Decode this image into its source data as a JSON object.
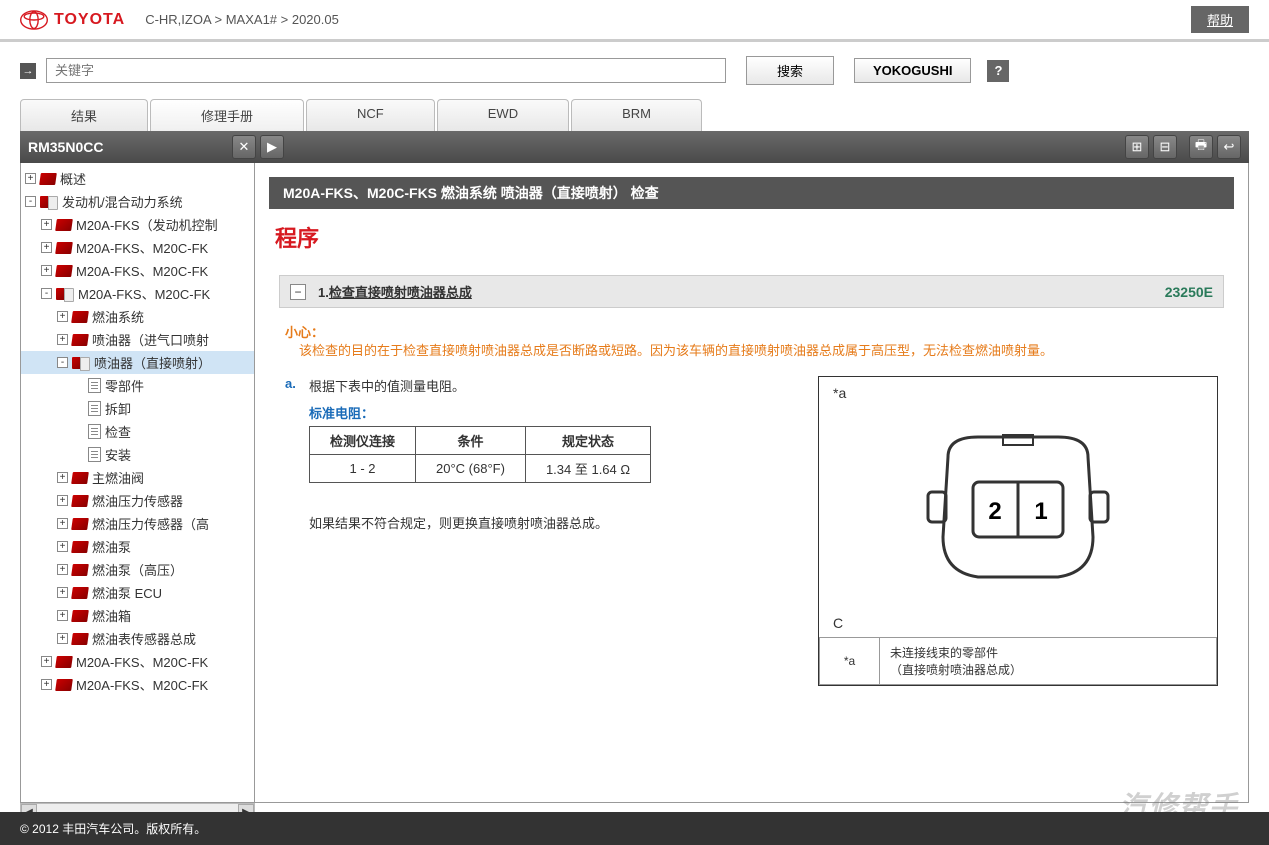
{
  "header": {
    "logo": "TOYOTA",
    "breadcrumb": "C-HR,IZOA > MAXA1# > 2020.05",
    "help": "帮助"
  },
  "search": {
    "placeholder": "关键字",
    "searchBtn": "搜索",
    "yoko": "YOKOGUSHI"
  },
  "tabs": [
    "结果",
    "修理手册",
    "NCF",
    "EWD",
    "BRM"
  ],
  "docId": "RM35N0CC",
  "tree": [
    {
      "d": 0,
      "exp": "+",
      "icon": "red",
      "label": "概述"
    },
    {
      "d": 0,
      "exp": "-",
      "icon": "open",
      "label": "发动机/混合动力系统"
    },
    {
      "d": 1,
      "exp": "+",
      "icon": "red",
      "label": "M20A-FKS（发动机控制"
    },
    {
      "d": 1,
      "exp": "+",
      "icon": "red",
      "label": "M20A-FKS、M20C-FK"
    },
    {
      "d": 1,
      "exp": "+",
      "icon": "red",
      "label": "M20A-FKS、M20C-FK"
    },
    {
      "d": 1,
      "exp": "-",
      "icon": "open",
      "label": "M20A-FKS、M20C-FK"
    },
    {
      "d": 2,
      "exp": "+",
      "icon": "red",
      "label": "燃油系统"
    },
    {
      "d": 2,
      "exp": "+",
      "icon": "red",
      "label": "喷油器（进气口喷射"
    },
    {
      "d": 2,
      "exp": "-",
      "icon": "open",
      "label": "喷油器（直接喷射）",
      "sel": true
    },
    {
      "d": 3,
      "exp": " ",
      "icon": "doc",
      "label": "零部件"
    },
    {
      "d": 3,
      "exp": " ",
      "icon": "doc",
      "label": "拆卸"
    },
    {
      "d": 3,
      "exp": " ",
      "icon": "doc",
      "label": "检查"
    },
    {
      "d": 3,
      "exp": " ",
      "icon": "doc",
      "label": "安装"
    },
    {
      "d": 2,
      "exp": "+",
      "icon": "red",
      "label": "主燃油阀"
    },
    {
      "d": 2,
      "exp": "+",
      "icon": "red",
      "label": "燃油压力传感器"
    },
    {
      "d": 2,
      "exp": "+",
      "icon": "red",
      "label": "燃油压力传感器（高"
    },
    {
      "d": 2,
      "exp": "+",
      "icon": "red",
      "label": "燃油泵"
    },
    {
      "d": 2,
      "exp": "+",
      "icon": "red",
      "label": "燃油泵（高压）"
    },
    {
      "d": 2,
      "exp": "+",
      "icon": "red",
      "label": "燃油泵 ECU"
    },
    {
      "d": 2,
      "exp": "+",
      "icon": "red",
      "label": "燃油箱"
    },
    {
      "d": 2,
      "exp": "+",
      "icon": "red",
      "label": "燃油表传感器总成"
    },
    {
      "d": 1,
      "exp": "+",
      "icon": "red",
      "label": "M20A-FKS、M20C-FK"
    },
    {
      "d": 1,
      "exp": "+",
      "icon": "red",
      "label": "M20A-FKS、M20C-FK"
    }
  ],
  "content": {
    "title": "M20A-FKS、M20C-FKS 燃油系统  喷油器（直接喷射）  检查",
    "section": "程序",
    "step": {
      "num": "1.",
      "text": "检查直接喷射喷油器总成",
      "code": "23250E"
    },
    "caution": {
      "label": "小心：",
      "text": "该检查的目的在于检查直接喷射喷油器总成是否断路或短路。因为该车辆的直接喷射喷油器总成属于高压型，无法检查燃油喷射量。"
    },
    "procLetter": "a.",
    "procText": "根据下表中的值测量电阻。",
    "stdLabel": "标准电阻：",
    "table": {
      "headers": [
        "检测仪连接",
        "条件",
        "规定状态"
      ],
      "row": [
        "1 - 2",
        "20°C (68°F)",
        "1.34 至 1.64 Ω"
      ]
    },
    "note": "如果结果不符合规定，则更换直接喷射喷油器总成。",
    "diagram": {
      "topLabel": "*a",
      "corner": "C",
      "pin1": "1",
      "pin2": "2"
    },
    "legend": {
      "key": "*a",
      "val1": "未连接线束的零部件",
      "val2": "（直接喷射喷油器总成）"
    }
  },
  "footer": "© 2012 丰田汽车公司。版权所有。",
  "watermark": "汽修帮手"
}
